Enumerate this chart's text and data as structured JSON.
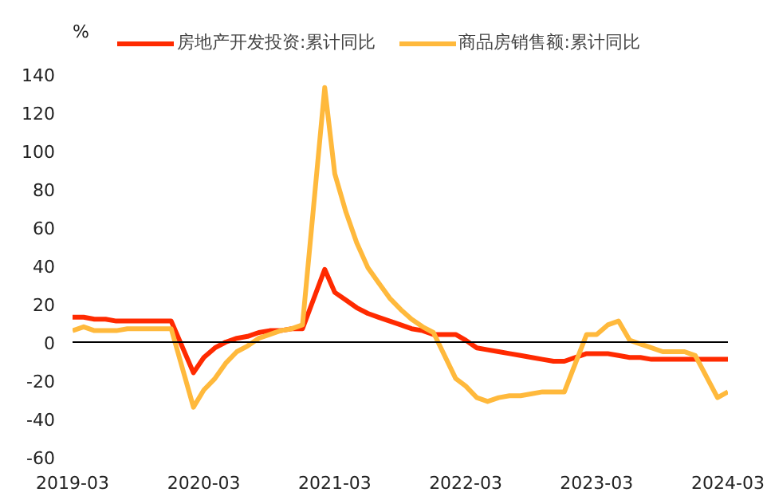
{
  "chart_data": {
    "type": "line",
    "ylabel": "%",
    "x": [
      "2019-03",
      "2019-04",
      "2019-05",
      "2019-06",
      "2019-07",
      "2019-08",
      "2019-09",
      "2019-10",
      "2019-11",
      "2019-12",
      "2020-02",
      "2020-03",
      "2020-04",
      "2020-05",
      "2020-06",
      "2020-07",
      "2020-08",
      "2020-09",
      "2020-10",
      "2020-11",
      "2020-12",
      "2021-02",
      "2021-03",
      "2021-04",
      "2021-05",
      "2021-06",
      "2021-07",
      "2021-08",
      "2021-09",
      "2021-10",
      "2021-11",
      "2021-12",
      "2022-02",
      "2022-03",
      "2022-04",
      "2022-05",
      "2022-06",
      "2022-07",
      "2022-08",
      "2022-09",
      "2022-10",
      "2022-11",
      "2022-12",
      "2023-02",
      "2023-03",
      "2023-04",
      "2023-05",
      "2023-06",
      "2023-07",
      "2023-08",
      "2023-09",
      "2023-10",
      "2023-11",
      "2023-12",
      "2024-02",
      "2024-03"
    ],
    "series": [
      {
        "name": "房地产开发投资:累计同比",
        "color": "#ff2a00",
        "values": [
          13,
          13,
          12,
          12,
          11,
          11,
          11,
          11,
          11,
          11,
          -16,
          -8,
          -3,
          0,
          2,
          3,
          5,
          6,
          6,
          7,
          7,
          38,
          26,
          22,
          18,
          15,
          13,
          11,
          9,
          7,
          6,
          4,
          4,
          1,
          -3,
          -4,
          -5,
          -6,
          -7,
          -8,
          -9,
          -10,
          -10,
          -6,
          -6,
          -6,
          -7,
          -8,
          -8,
          -9,
          -9,
          -9,
          -9,
          -9,
          -9,
          -9
        ]
      },
      {
        "name": "商品房销售额:累计同比",
        "color": "#ffb93c",
        "values": [
          6,
          8,
          6,
          6,
          6,
          7,
          7,
          7,
          7,
          7,
          -34,
          -25,
          -19,
          -11,
          -5,
          -2,
          2,
          4,
          6,
          7,
          9,
          133,
          88,
          68,
          52,
          39,
          31,
          23,
          17,
          12,
          8,
          5,
          -19,
          -23,
          -29,
          -31,
          -29,
          -28,
          -28,
          -27,
          -26,
          -26,
          -26,
          4,
          4,
          9,
          11,
          1,
          -1,
          -3,
          -5,
          -5,
          -5,
          -7,
          -29,
          -26
        ]
      }
    ],
    "ylim": [
      -60,
      140
    ],
    "yticks": [
      -60,
      -40,
      -20,
      0,
      20,
      40,
      60,
      80,
      100,
      120,
      140
    ],
    "xlim": [
      "2019-03",
      "2024-03"
    ],
    "xticks": [
      "2019-03",
      "2020-03",
      "2021-03",
      "2022-03",
      "2023-03",
      "2024-03"
    ],
    "ref_lines": [
      {
        "axis": "y",
        "value": 0,
        "color": "#000000"
      }
    ],
    "grid": false,
    "legend": "top",
    "marker": "none",
    "line_style": "solid"
  }
}
